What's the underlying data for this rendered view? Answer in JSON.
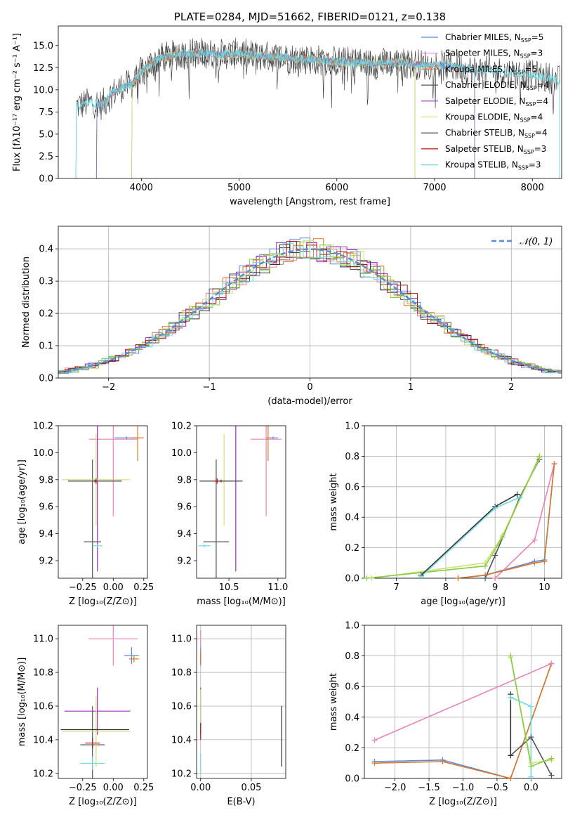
{
  "colors": {
    "chabrier_miles": "#5b8bd8",
    "salpeter_miles": "#e884b8",
    "kroupa_miles": "#d8782c",
    "chabrier_elodie": "#555555",
    "salpeter_elodie": "#9b30c0",
    "kroupa_elodie": "#cfe070",
    "chabrier_stelib": "#333333",
    "salpeter_stelib": "#b01818",
    "kroupa_stelib": "#6fd8e0",
    "extra_green": "#88cc44",
    "normal": "#5b8bd8"
  },
  "chart_data": [
    {
      "id": "spectrum",
      "type": "line",
      "title": "PLATE=0284, MJD=51662, FIBERID=0121, z=0.138",
      "xlabel": "wavelength [Angstrom, rest frame]",
      "ylabel": "Flux [fλ10⁻¹⁷ erg cm⁻² s⁻¹ A⁻¹]",
      "xlim": [
        3150,
        8300
      ],
      "ylim": [
        0,
        17.2
      ],
      "xticks": [
        4000,
        5000,
        6000,
        7000,
        8000
      ],
      "yticks": [
        0.0,
        2.5,
        5.0,
        7.5,
        10.0,
        12.5,
        15.0
      ],
      "xtick_labels": [
        "4000",
        "5000",
        "6000",
        "7000",
        "8000"
      ],
      "ytick_labels": [
        "0.0",
        "2.5",
        "5.0",
        "7.5",
        "10.0",
        "12.5",
        "15.0"
      ],
      "legend_position": "right",
      "legend": [
        {
          "label": "Chabrier MILES, N",
          "sub": "SSP",
          "eq": "=5",
          "color_key": "chabrier_miles"
        },
        {
          "label": "Salpeter MILES, N",
          "sub": "SSP",
          "eq": "=3",
          "color_key": "salpeter_miles"
        },
        {
          "label": "Kroupa MILES, N",
          "sub": "SSP",
          "eq": "=5",
          "color_key": "kroupa_miles"
        },
        {
          "label": "Chabrier ELODIE, N",
          "sub": "SSP",
          "eq": "=4",
          "color_key": "chabrier_elodie"
        },
        {
          "label": "Salpeter ELODIE, N",
          "sub": "SSP",
          "eq": "=4",
          "color_key": "salpeter_elodie"
        },
        {
          "label": "Kroupa ELODIE, N",
          "sub": "SSP",
          "eq": "=4",
          "color_key": "kroupa_elodie"
        },
        {
          "label": "Chabrier STELIB, N",
          "sub": "SSP",
          "eq": "=4",
          "color_key": "chabrier_stelib"
        },
        {
          "label": "Salpeter STELIB, N",
          "sub": "SSP",
          "eq": "=3",
          "color_key": "salpeter_stelib"
        },
        {
          "label": "Kroupa STELIB, N",
          "sub": "SSP",
          "eq": "=3",
          "color_key": "kroupa_stelib"
        }
      ],
      "envelope": {
        "x": [
          3350,
          3500,
          3600,
          3700,
          3800,
          3900,
          4000,
          4100,
          4200,
          4400,
          4600,
          4800,
          5000,
          5200,
          5400,
          5600,
          5800,
          6000,
          6200,
          6400,
          6600,
          6800,
          7000,
          7200,
          7400,
          7600,
          7800,
          8000,
          8200,
          8280
        ],
        "y": [
          8.2,
          8.6,
          8.3,
          9.6,
          10.3,
          10.6,
          12.0,
          13.0,
          13.6,
          14.0,
          14.2,
          14.0,
          14.1,
          13.8,
          13.7,
          13.5,
          13.4,
          13.2,
          13.1,
          12.9,
          13.1,
          12.9,
          12.8,
          12.6,
          12.2,
          12.1,
          11.9,
          11.6,
          11.3,
          11.0
        ]
      },
      "model_ranges": {
        "miles": [
          3540,
          7410
        ],
        "elodie": [
          3900,
          6800
        ],
        "stelib": [
          3330,
          8280
        ]
      }
    },
    {
      "id": "residuals",
      "type": "histogram",
      "xlabel": "(data-model)/error",
      "ylabel": "Normed distribution",
      "xlim": [
        -2.5,
        2.5
      ],
      "ylim": [
        0,
        0.47
      ],
      "xticks": [
        -2,
        -1,
        0,
        1,
        2
      ],
      "yticks": [
        0.0,
        0.1,
        0.2,
        0.3,
        0.4
      ],
      "xtick_labels": [
        "−2",
        "−1",
        "0",
        "1",
        "2"
      ],
      "ytick_labels": [
        "0.0",
        "0.1",
        "0.2",
        "0.3",
        "0.4"
      ],
      "legend_position": "top-right",
      "legend_label": "𝒩(0, 1)",
      "bin_width": 0.1
    },
    {
      "id": "age_vs_Z",
      "type": "errorbar",
      "xlabel": "Z [log₁₀(Z/Z⊙)]",
      "ylabel": "age  [log₁₀(age/yr)]",
      "xlim": [
        -0.45,
        0.28
      ],
      "ylim": [
        9.07,
        10.2
      ],
      "xticks": [
        -0.25,
        0.0,
        0.25
      ],
      "yticks": [
        9.2,
        9.4,
        9.6,
        9.8,
        10.0,
        10.2
      ],
      "xtick_labels": [
        "−0.25",
        "0.00",
        "0.25"
      ],
      "ytick_labels": [
        "9.2",
        "9.4",
        "9.6",
        "9.8",
        "10.0",
        "10.2"
      ],
      "points": [
        {
          "x": 0.11,
          "xerr": 0.1,
          "y": 10.11,
          "yerr": 0.01,
          "color_key": "chabrier_miles"
        },
        {
          "x": 0.0,
          "xerr": 0.2,
          "y": 10.1,
          "yerr": 0.57,
          "color_key": "salpeter_miles"
        },
        {
          "x": 0.2,
          "xerr": 0.05,
          "y": 10.11,
          "yerr": 0.17,
          "color_key": "kroupa_miles"
        },
        {
          "x": -0.17,
          "xerr": 0.07,
          "y": 9.34,
          "yerr": 0.61,
          "color_key": "chabrier_elodie"
        },
        {
          "x": -0.13,
          "xerr": 0.0,
          "y": 9.72,
          "yerr": 0.6,
          "color_key": "salpeter_elodie"
        },
        {
          "x": -0.14,
          "xerr": 0.28,
          "y": 9.8,
          "yerr": 0.34,
          "color_key": "kroupa_elodie"
        },
        {
          "x": -0.15,
          "xerr": 0.22,
          "y": 9.79,
          "yerr": 0.01,
          "color_key": "chabrier_stelib"
        },
        {
          "x": -0.14,
          "xerr": 0.01,
          "y": 9.79,
          "yerr": 0.02,
          "color_key": "salpeter_stelib"
        },
        {
          "x": -0.13,
          "xerr": 0.04,
          "y": 9.31,
          "yerr": 0.01,
          "color_key": "kroupa_stelib"
        }
      ]
    },
    {
      "id": "age_vs_mass",
      "type": "errorbar",
      "xlabel": "mass [log₁₀(M/M⊙)]",
      "ylabel": "",
      "xlim": [
        10.17,
        11.08
      ],
      "ylim": [
        9.07,
        10.2
      ],
      "xticks": [
        10.5,
        11.0
      ],
      "yticks": [
        9.2,
        9.4,
        9.6,
        9.8,
        10.0,
        10.2
      ],
      "xtick_labels": [
        "10.5",
        "11.0"
      ],
      "ytick_labels": [
        "9.2",
        "9.4",
        "9.6",
        "9.8",
        "10.0",
        "10.2"
      ],
      "points": [
        {
          "x": 10.95,
          "xerr": 0.05,
          "y": 10.11,
          "yerr": 0.01,
          "color_key": "chabrier_miles"
        },
        {
          "x": 10.88,
          "xerr": 0.16,
          "y": 10.1,
          "yerr": 0.57,
          "color_key": "salpeter_miles"
        },
        {
          "x": 10.9,
          "xerr": 0.02,
          "y": 10.11,
          "yerr": 0.17,
          "color_key": "kroupa_miles"
        },
        {
          "x": 10.37,
          "xerr": 0.13,
          "y": 9.34,
          "yerr": 0.61,
          "color_key": "chabrier_elodie"
        },
        {
          "x": 10.57,
          "xerr": 0.0,
          "y": 9.72,
          "yerr": 0.6,
          "color_key": "salpeter_elodie"
        },
        {
          "x": 10.45,
          "xerr": 0.0,
          "y": 9.8,
          "yerr": 0.34,
          "color_key": "kroupa_elodie"
        },
        {
          "x": 10.42,
          "xerr": 0.22,
          "y": 9.79,
          "yerr": 0.01,
          "color_key": "chabrier_stelib"
        },
        {
          "x": 10.38,
          "xerr": 0.03,
          "y": 9.79,
          "yerr": 0.02,
          "color_key": "salpeter_stelib"
        },
        {
          "x": 10.25,
          "xerr": 0.06,
          "y": 9.31,
          "yerr": 0.01,
          "color_key": "kroupa_stelib"
        }
      ]
    },
    {
      "id": "massweight_vs_age",
      "type": "line",
      "xlabel": "age  [log₁₀(age/yr)]",
      "ylabel": "mass weight",
      "xlim": [
        6.35,
        10.35
      ],
      "ylim": [
        0,
        1.0
      ],
      "xticks": [
        7,
        8,
        9,
        10
      ],
      "yticks": [
        0.0,
        0.2,
        0.4,
        0.6,
        0.8,
        1.0
      ],
      "xtick_labels": [
        "7",
        "8",
        "9",
        "10"
      ],
      "ytick_labels": [
        "0.0",
        "0.2",
        "0.4",
        "0.6",
        "0.8",
        "1.0"
      ],
      "series": [
        {
          "color_key": "chabrier_miles",
          "x": [
            8.25,
            8.8,
            9.8,
            10.0,
            10.2
          ],
          "y": [
            0.0,
            0.02,
            0.11,
            0.12,
            0.75
          ]
        },
        {
          "color_key": "salpeter_miles",
          "x": [
            9.0,
            9.8,
            10.2
          ],
          "y": [
            0.0,
            0.25,
            0.75
          ]
        },
        {
          "color_key": "kroupa_miles",
          "x": [
            8.25,
            8.8,
            9.8,
            10.0,
            10.2
          ],
          "y": [
            0.0,
            0.02,
            0.1,
            0.11,
            0.75
          ]
        },
        {
          "color_key": "chabrier_elodie",
          "x": [
            8.8,
            9.0,
            9.5,
            9.9
          ],
          "y": [
            0.0,
            0.15,
            0.53,
            0.78
          ]
        },
        {
          "color_key": "kroupa_elodie",
          "x": [
            6.5,
            8.8,
            9.15,
            9.9
          ],
          "y": [
            0.0,
            0.1,
            0.28,
            0.79
          ]
        },
        {
          "color_key": "extra_green",
          "x": [
            6.4,
            8.8,
            9.15,
            9.9
          ],
          "y": [
            0.0,
            0.08,
            0.27,
            0.8
          ]
        },
        {
          "color_key": "chabrier_stelib",
          "x": [
            7.5,
            9.0,
            9.45
          ],
          "y": [
            0.02,
            0.47,
            0.55
          ]
        },
        {
          "color_key": "kroupa_stelib",
          "x": [
            7.5,
            9.0,
            9.5
          ],
          "y": [
            0.01,
            0.46,
            0.53
          ]
        }
      ]
    },
    {
      "id": "mass_vs_Z",
      "type": "errorbar",
      "xlabel": "Z [log₁₀(Z/Z⊙)]",
      "ylabel": "mass [log₁₀(M/M⊙)]",
      "xlim": [
        -0.45,
        0.28
      ],
      "ylim": [
        10.17,
        11.08
      ],
      "xticks": [
        -0.25,
        0.0,
        0.25
      ],
      "yticks": [
        10.2,
        10.4,
        10.6,
        10.8,
        11.0
      ],
      "xtick_labels": [
        "−0.25",
        "0.00",
        "0.25"
      ],
      "ytick_labels": [
        "10.2",
        "10.4",
        "10.6",
        "10.8",
        "11.0"
      ],
      "points": [
        {
          "x": 0.15,
          "xerr": 0.06,
          "y": 10.9,
          "yerr": 0.05,
          "color_key": "chabrier_miles"
        },
        {
          "x": 0.0,
          "xerr": 0.2,
          "y": 11.0,
          "yerr": 0.16,
          "color_key": "salpeter_miles"
        },
        {
          "x": 0.17,
          "xerr": 0.04,
          "y": 10.88,
          "yerr": 0.02,
          "color_key": "kroupa_miles"
        },
        {
          "x": -0.17,
          "xerr": 0.1,
          "y": 10.37,
          "yerr": 0.23,
          "color_key": "chabrier_elodie"
        },
        {
          "x": -0.13,
          "xerr": 0.27,
          "y": 10.57,
          "yerr": 0.14,
          "color_key": "salpeter_elodie"
        },
        {
          "x": -0.14,
          "xerr": 0.28,
          "y": 10.45,
          "yerr": 0.21,
          "color_key": "kroupa_elodie"
        },
        {
          "x": -0.15,
          "xerr": 0.28,
          "y": 10.46,
          "yerr": 0.0,
          "color_key": "chabrier_stelib"
        },
        {
          "x": -0.17,
          "xerr": 0.06,
          "y": 10.38,
          "yerr": 0.03,
          "color_key": "salpeter_stelib"
        },
        {
          "x": -0.17,
          "xerr": 0.1,
          "y": 10.26,
          "yerr": 0.04,
          "color_key": "kroupa_stelib"
        }
      ]
    },
    {
      "id": "mass_vs_ebv",
      "type": "errorbar",
      "xlabel": "E(B-V)",
      "ylabel": "",
      "xlim": [
        -0.004,
        0.084
      ],
      "ylim": [
        10.17,
        11.08
      ],
      "xticks": [
        0.0,
        0.05
      ],
      "yticks": [
        10.2,
        10.4,
        10.6,
        10.8,
        11.0
      ],
      "xtick_labels": [
        "0.00",
        "0.05"
      ],
      "ytick_labels": [
        "10.2",
        "10.4",
        "10.6",
        "10.8",
        "11.0"
      ],
      "points": [
        {
          "x": 0.0,
          "xerr": 0.0,
          "y": 10.9,
          "yerr": 0.05,
          "color_key": "chabrier_miles"
        },
        {
          "x": 0.0,
          "xerr": 0.0,
          "y": 11.0,
          "yerr": 0.05,
          "color_key": "salpeter_miles"
        },
        {
          "x": 0.0,
          "xerr": 0.0,
          "y": 10.88,
          "yerr": 0.04,
          "color_key": "kroupa_miles"
        },
        {
          "x": 0.0,
          "xerr": 0.0,
          "y": 10.57,
          "yerr": 0.14,
          "color_key": "salpeter_elodie"
        },
        {
          "x": 0.0,
          "xerr": 0.0,
          "y": 10.6,
          "yerr": 0.1,
          "color_key": "kroupa_elodie"
        },
        {
          "x": 0.0,
          "xerr": 0.0,
          "y": 10.45,
          "yerr": 0.05,
          "color_key": "salpeter_stelib"
        },
        {
          "x": 0.0,
          "xerr": 0.0,
          "y": 10.26,
          "yerr": 0.06,
          "color_key": "kroupa_stelib"
        },
        {
          "x": 0.08,
          "xerr": 0.0,
          "y": 10.42,
          "yerr": 0.18,
          "color_key": "chabrier_stelib"
        }
      ]
    },
    {
      "id": "massweight_vs_Z",
      "type": "line",
      "xlabel": "Z [log₁₀(Z/Z⊙)]",
      "ylabel": "mass weight",
      "xlim": [
        -2.45,
        0.45
      ],
      "ylim": [
        0,
        1.0
      ],
      "xticks": [
        -2.0,
        -1.5,
        -1.0,
        -0.5,
        0.0
      ],
      "yticks": [
        0.0,
        0.2,
        0.4,
        0.6,
        0.8,
        1.0
      ],
      "xtick_labels": [
        "−2.0",
        "−1.5",
        "−1.0",
        "−0.5",
        "0.0"
      ],
      "ytick_labels": [
        "0.0",
        "0.2",
        "0.4",
        "0.6",
        "0.8",
        "1.0"
      ],
      "series": [
        {
          "color_key": "chabrier_miles",
          "x": [
            -2.3,
            -1.3,
            -0.3,
            0.3
          ],
          "y": [
            0.11,
            0.12,
            0.0,
            0.75
          ]
        },
        {
          "color_key": "kroupa_miles",
          "x": [
            -2.3,
            -1.3,
            -0.3,
            0.3
          ],
          "y": [
            0.1,
            0.11,
            0.0,
            0.75
          ]
        },
        {
          "color_key": "salpeter_miles",
          "x": [
            -2.3,
            0.3
          ],
          "y": [
            0.25,
            0.75
          ]
        },
        {
          "color_key": "chabrier_elodie",
          "x": [
            -0.3,
            0.0,
            0.3
          ],
          "y": [
            0.15,
            0.27,
            0.02
          ]
        },
        {
          "color_key": "chabrier_stelib",
          "x": [
            -0.3,
            -0.3
          ],
          "y": [
            0.15,
            0.55
          ]
        },
        {
          "color_key": "kroupa_elodie",
          "x": [
            -0.3,
            0.0,
            0.3
          ],
          "y": [
            0.79,
            0.1,
            0.12
          ]
        },
        {
          "color_key": "extra_green",
          "x": [
            -0.3,
            0.0,
            0.3
          ],
          "y": [
            0.8,
            0.08,
            0.13
          ]
        },
        {
          "color_key": "kroupa_stelib",
          "x": [
            -0.3,
            0.0,
            0.0
          ],
          "y": [
            0.53,
            0.47,
            0.01
          ]
        }
      ]
    }
  ]
}
